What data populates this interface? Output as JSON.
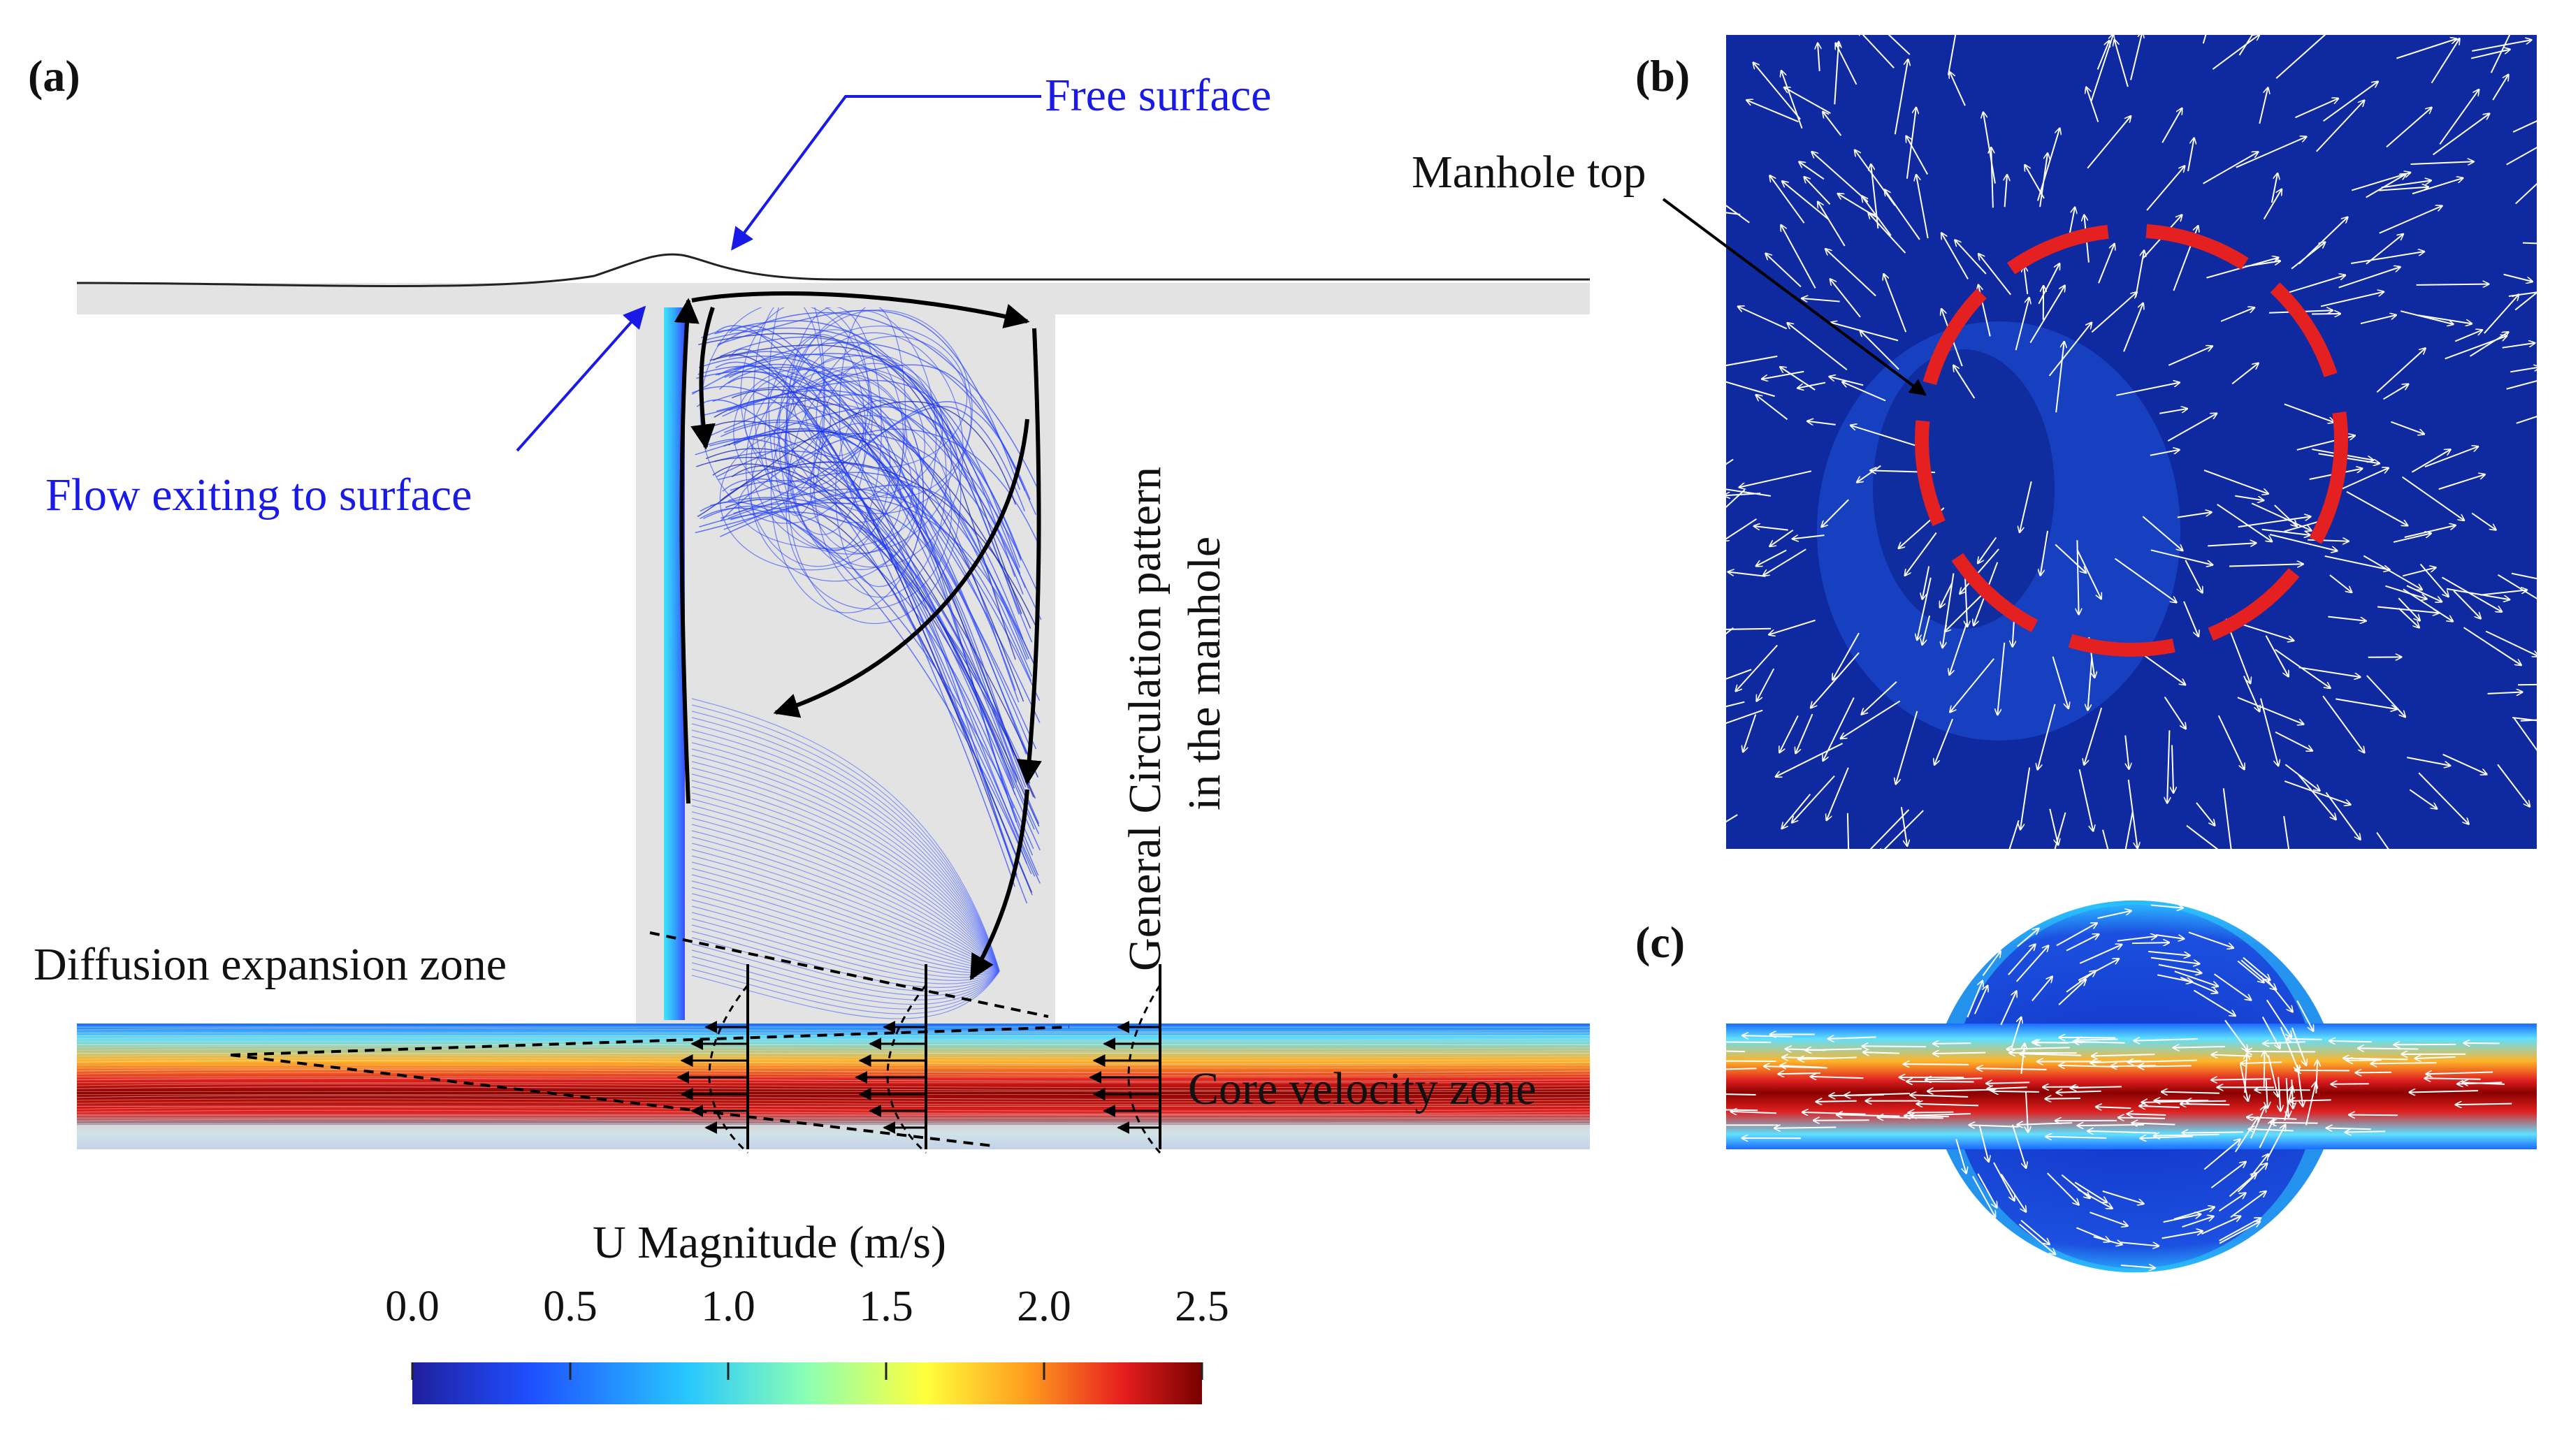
{
  "panel_labels": {
    "a": "(a)",
    "b": "(b)",
    "c": "(c)"
  },
  "annotations": {
    "free_surface": "Free surface",
    "flow_exiting": "Flow exiting to surface",
    "circulation_line1": "General Circulation pattern",
    "circulation_line2": "in the manhole",
    "diffusion_zone": "Diffusion expansion zone",
    "core_zone": "Core velocity zone",
    "manhole_top": "Manhole top"
  },
  "colorbar": {
    "title": "U Magnitude (m/s)",
    "unit": "m/s",
    "min": 0.0,
    "max": 2.5,
    "ticks": [
      "0.0",
      "0.5",
      "1.0",
      "1.5",
      "2.0",
      "2.5"
    ],
    "tick_values": [
      0.0,
      0.5,
      1.0,
      1.5,
      2.0,
      2.5
    ],
    "colormap": [
      "#1f1f9e",
      "#1f4fff",
      "#28c8ff",
      "#8cffb4",
      "#ffff3c",
      "#ff9b1e",
      "#e61e1e",
      "#780000"
    ]
  },
  "colors": {
    "annotation_blue": "#1a1ae6",
    "streamline_blue": "#1e3cff",
    "pipe_grey": "#e3e3e3",
    "field_navy": "#0f2aa0",
    "dashed_red": "#e52020"
  }
}
